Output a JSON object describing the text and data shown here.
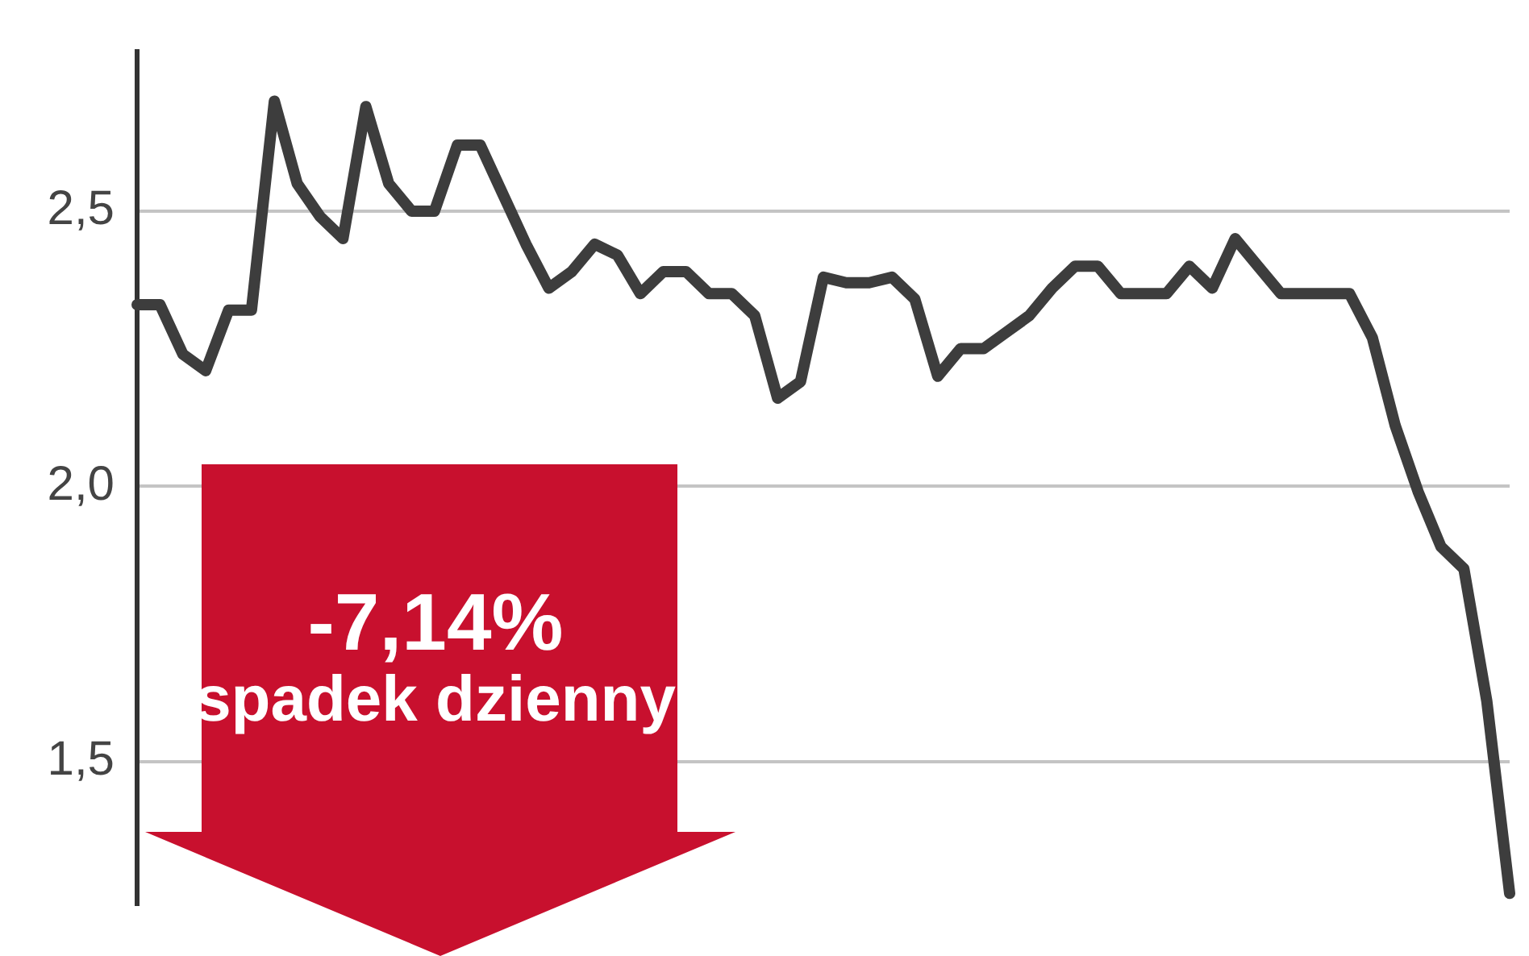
{
  "chart_data": {
    "type": "line",
    "categories": [
      null,
      null,
      null,
      null,
      null,
      null,
      null,
      null,
      null,
      null,
      null,
      null,
      null,
      null,
      null,
      null,
      null,
      null,
      null,
      null,
      null,
      null,
      null,
      null,
      null,
      null,
      null,
      null,
      null,
      null,
      null,
      null,
      null,
      null,
      null,
      null,
      null,
      null,
      null,
      null,
      null,
      null,
      null,
      null,
      null,
      null,
      null,
      null,
      null,
      null,
      null,
      null,
      null,
      null,
      null,
      null,
      null,
      null,
      null,
      null,
      null
    ],
    "series": [
      {
        "color": "#3d3d3d",
        "values": [
          2.33,
          2.33,
          2.24,
          2.21,
          2.32,
          2.32,
          2.7,
          2.55,
          2.49,
          2.45,
          2.69,
          2.55,
          2.5,
          2.5,
          2.62,
          2.62,
          2.53,
          2.44,
          2.36,
          2.39,
          2.44,
          2.42,
          2.35,
          2.39,
          2.39,
          2.35,
          2.35,
          2.31,
          2.16,
          2.19,
          2.38,
          2.37,
          2.37,
          2.38,
          2.34,
          2.2,
          2.25,
          2.25,
          2.28,
          2.31,
          2.36,
          2.4,
          2.4,
          2.35,
          2.35,
          2.35,
          2.4,
          2.36,
          2.45,
          2.4,
          2.35,
          2.35,
          2.35,
          2.35,
          2.27,
          2.11,
          1.99,
          1.89,
          1.85,
          1.61,
          1.26
        ]
      }
    ],
    "ylim": [
      1.24,
      2.79
    ],
    "yticks": [
      {
        "value": 1.5,
        "label": "1,5"
      },
      {
        "value": 2.0,
        "label": "2,0"
      },
      {
        "value": 2.5,
        "label": "2,5"
      }
    ],
    "grid": "y",
    "tick_labels": "y",
    "marker": "none",
    "legend": false,
    "annotations": [
      "-7,14%",
      "spadek dzienny"
    ]
  }
}
